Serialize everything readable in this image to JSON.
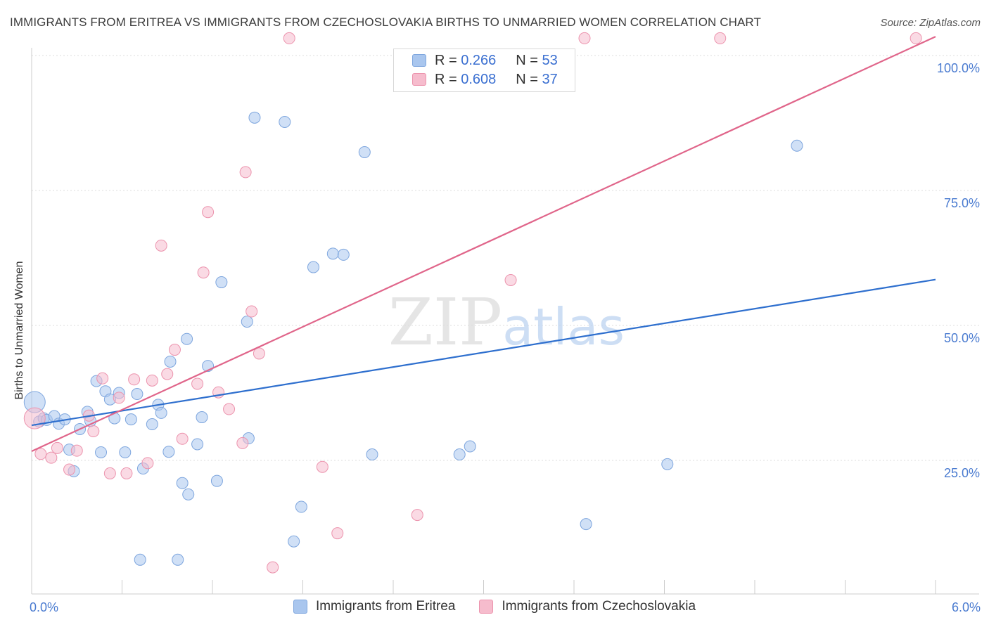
{
  "chart_data": {
    "type": "scatter",
    "title": "IMMIGRANTS FROM ERITREA VS IMMIGRANTS FROM CZECHOSLOVAKIA BIRTHS TO UNMARRIED WOMEN CORRELATION CHART",
    "source": "Source: ZipAtlas.com",
    "xlabel": "",
    "ylabel": "Births to Unmarried Women",
    "xlim": [
      0,
      6
    ],
    "ylim": [
      0,
      100
    ],
    "x_tick_labels": {
      "min": "0.0%",
      "max": "6.0%"
    },
    "y_ticks": [
      {
        "value": 25,
        "label": "25.0%"
      },
      {
        "value": 50,
        "label": "50.0%"
      },
      {
        "value": 75,
        "label": "75.0%"
      },
      {
        "value": 100,
        "label": "100.0%"
      }
    ],
    "watermark": "ZIPatlas",
    "legend": [
      {
        "name": "Immigrants from Eritrea",
        "r_label": "R =",
        "r": "0.266",
        "n_label": "N =",
        "n": "53"
      },
      {
        "name": "Immigrants from Czechoslovakia",
        "r_label": "R =",
        "r": "0.608",
        "n_label": "N =",
        "n": "37"
      }
    ],
    "series": [
      {
        "name": "Immigrants from Eritrea",
        "color": "#a9c6ee",
        "stroke": "#7ea6de",
        "line_color": "#2e6fce",
        "trend": {
          "x0": 0,
          "y0": 31.5,
          "x1": 6,
          "y1": 58.5
        },
        "points": [
          {
            "x": 0.02,
            "y": 35.8,
            "big": true
          },
          {
            "x": 0.05,
            "y": 32.2
          },
          {
            "x": 0.08,
            "y": 32.8
          },
          {
            "x": 0.1,
            "y": 32.5
          },
          {
            "x": 0.15,
            "y": 33.2
          },
          {
            "x": 0.18,
            "y": 31.8
          },
          {
            "x": 0.22,
            "y": 32.6
          },
          {
            "x": 0.25,
            "y": 27.0
          },
          {
            "x": 0.28,
            "y": 23.0
          },
          {
            "x": 0.32,
            "y": 30.8
          },
          {
            "x": 0.37,
            "y": 34.0
          },
          {
            "x": 0.39,
            "y": 32.3
          },
          {
            "x": 0.43,
            "y": 39.7
          },
          {
            "x": 0.46,
            "y": 26.5
          },
          {
            "x": 0.49,
            "y": 37.8
          },
          {
            "x": 0.52,
            "y": 36.3
          },
          {
            "x": 0.55,
            "y": 32.8
          },
          {
            "x": 0.58,
            "y": 37.5
          },
          {
            "x": 0.62,
            "y": 26.5
          },
          {
            "x": 0.66,
            "y": 32.6
          },
          {
            "x": 0.7,
            "y": 37.3
          },
          {
            "x": 0.72,
            "y": 6.6
          },
          {
            "x": 0.74,
            "y": 23.5
          },
          {
            "x": 0.8,
            "y": 31.7
          },
          {
            "x": 0.84,
            "y": 35.3
          },
          {
            "x": 0.86,
            "y": 33.8
          },
          {
            "x": 0.91,
            "y": 26.6
          },
          {
            "x": 0.92,
            "y": 43.3
          },
          {
            "x": 0.97,
            "y": 6.6
          },
          {
            "x": 1.0,
            "y": 20.8
          },
          {
            "x": 1.04,
            "y": 18.7
          },
          {
            "x": 1.03,
            "y": 47.5
          },
          {
            "x": 1.1,
            "y": 28.0
          },
          {
            "x": 1.13,
            "y": 33.0
          },
          {
            "x": 1.17,
            "y": 42.5
          },
          {
            "x": 1.23,
            "y": 21.2
          },
          {
            "x": 1.26,
            "y": 58.0
          },
          {
            "x": 1.43,
            "y": 50.7
          },
          {
            "x": 1.44,
            "y": 29.1
          },
          {
            "x": 1.48,
            "y": 88.5
          },
          {
            "x": 1.68,
            "y": 87.7
          },
          {
            "x": 1.74,
            "y": 10.0
          },
          {
            "x": 1.79,
            "y": 16.4
          },
          {
            "x": 1.87,
            "y": 60.8
          },
          {
            "x": 2.0,
            "y": 63.3
          },
          {
            "x": 2.07,
            "y": 63.1
          },
          {
            "x": 2.21,
            "y": 82.1
          },
          {
            "x": 2.26,
            "y": 26.1
          },
          {
            "x": 2.84,
            "y": 26.1
          },
          {
            "x": 2.91,
            "y": 27.6
          },
          {
            "x": 3.68,
            "y": 13.2
          },
          {
            "x": 4.22,
            "y": 24.3
          },
          {
            "x": 5.08,
            "y": 83.3
          }
        ]
      },
      {
        "name": "Immigrants from Czechoslovakia",
        "color": "#f6bccd",
        "stroke": "#ec93ad",
        "line_color": "#e0658a",
        "trend": {
          "x0": 0,
          "y0": 26.7,
          "x1": 6,
          "y1": 103.5
        },
        "points": [
          {
            "x": 0.02,
            "y": 32.8,
            "big": true
          },
          {
            "x": 0.06,
            "y": 26.2
          },
          {
            "x": 0.13,
            "y": 25.5
          },
          {
            "x": 0.17,
            "y": 27.3
          },
          {
            "x": 0.25,
            "y": 23.3
          },
          {
            "x": 0.3,
            "y": 26.8
          },
          {
            "x": 0.38,
            "y": 33.3
          },
          {
            "x": 0.41,
            "y": 30.4
          },
          {
            "x": 0.47,
            "y": 40.2
          },
          {
            "x": 0.52,
            "y": 22.6
          },
          {
            "x": 0.58,
            "y": 36.6
          },
          {
            "x": 0.63,
            "y": 22.6
          },
          {
            "x": 0.68,
            "y": 40.0
          },
          {
            "x": 0.77,
            "y": 24.5
          },
          {
            "x": 0.8,
            "y": 39.8
          },
          {
            "x": 0.86,
            "y": 64.8
          },
          {
            "x": 0.9,
            "y": 41.0
          },
          {
            "x": 0.95,
            "y": 45.5
          },
          {
            "x": 1.0,
            "y": 29.0
          },
          {
            "x": 1.1,
            "y": 39.2
          },
          {
            "x": 1.14,
            "y": 59.8
          },
          {
            "x": 1.17,
            "y": 71.0
          },
          {
            "x": 1.24,
            "y": 37.6
          },
          {
            "x": 1.31,
            "y": 34.5
          },
          {
            "x": 1.4,
            "y": 28.2
          },
          {
            "x": 1.42,
            "y": 78.4
          },
          {
            "x": 1.46,
            "y": 52.6
          },
          {
            "x": 1.51,
            "y": 44.8
          },
          {
            "x": 1.6,
            "y": 5.2
          },
          {
            "x": 1.71,
            "y": 103.2
          },
          {
            "x": 1.93,
            "y": 23.8
          },
          {
            "x": 2.03,
            "y": 11.5
          },
          {
            "x": 2.56,
            "y": 14.9
          },
          {
            "x": 3.18,
            "y": 58.4
          },
          {
            "x": 3.67,
            "y": 103.2
          },
          {
            "x": 4.57,
            "y": 103.2
          },
          {
            "x": 5.87,
            "y": 103.2
          }
        ]
      }
    ]
  }
}
